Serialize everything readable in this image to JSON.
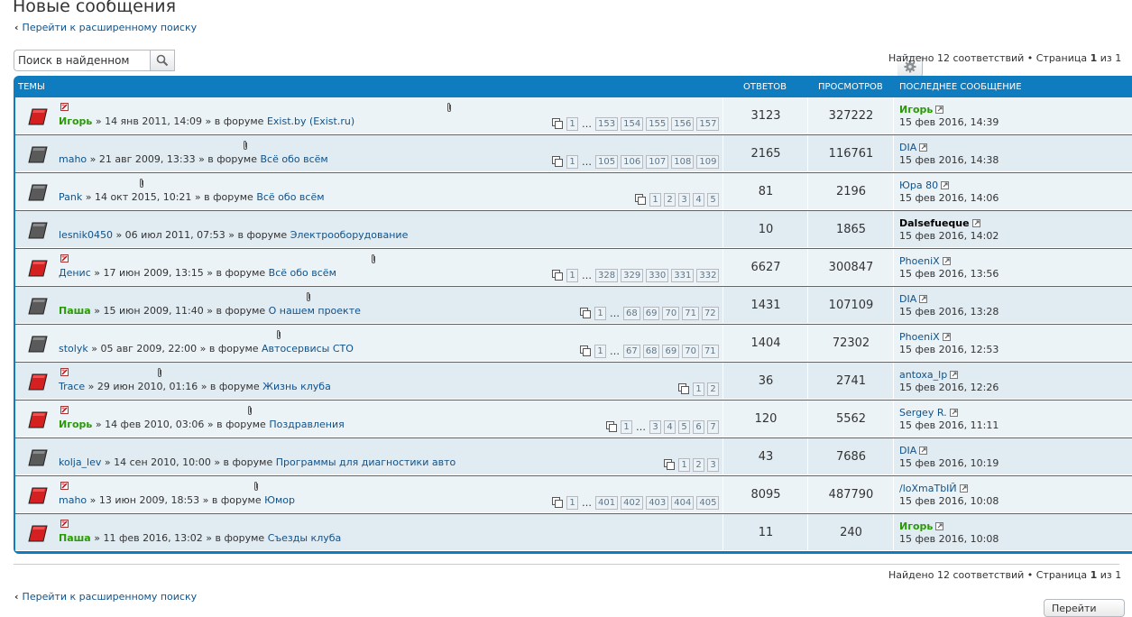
{
  "page_title": "Новые сообщения",
  "advanced_search_link": "Перейти к расширенному поиску",
  "search": {
    "value": "Поиск в найденном",
    "search_icon": "magnifier-icon",
    "options_icon": "gear-icon"
  },
  "pagination": {
    "found_text": "Найдено 12 соответствий • Страница ",
    "current_page": "1",
    "of_text": " из 1"
  },
  "columns": {
    "topics": "Темы",
    "replies": "Ответов",
    "views": "Просмотров",
    "last_post": "Последнее сообщение"
  },
  "topics": [
    {
      "author": "Игорь",
      "author_style": "green",
      "date": "14 янв 2011, 14:09",
      "forum": "Exist.by (Exist.ru)",
      "icon": "red",
      "unread": true,
      "pages": [
        "1",
        "…",
        "153",
        "154",
        "155",
        "156",
        "157"
      ],
      "replies": "3123",
      "views": "327222",
      "last_author": "Игорь",
      "last_author_style": "green",
      "last_time": "15 фев 2016, 14:39"
    },
    {
      "author": "maho",
      "author_style": "normal",
      "date": "21 авг 2009, 13:33",
      "forum": "Всё обо всём",
      "icon": "gray",
      "unread": false,
      "pages": [
        "1",
        "…",
        "105",
        "106",
        "107",
        "108",
        "109"
      ],
      "replies": "2165",
      "views": "116761",
      "last_author": "DIA",
      "last_author_style": "normal",
      "last_time": "15 фев 2016, 14:38"
    },
    {
      "author": "Pank",
      "author_style": "normal",
      "date": "14 окт 2015, 10:21",
      "forum": "Всё обо всём",
      "icon": "gray",
      "unread": false,
      "pages": [
        "1",
        "2",
        "3",
        "4",
        "5"
      ],
      "replies": "81",
      "views": "2196",
      "last_author": "Юра 80",
      "last_author_style": "normal",
      "last_time": "15 фев 2016, 14:06"
    },
    {
      "author": "lesnik0450",
      "author_style": "normal",
      "date": "06 июл 2011, 07:53",
      "forum": "Электрооборудование",
      "icon": "gray",
      "unread": false,
      "pages": [],
      "replies": "10",
      "views": "1865",
      "last_author": "Dalsefueque",
      "last_author_style": "dark",
      "last_time": "15 фев 2016, 14:02"
    },
    {
      "author": "Денис",
      "author_style": "normal",
      "date": "17 июн 2009, 13:15",
      "forum": "Всё обо всём",
      "icon": "red",
      "unread": true,
      "pages": [
        "1",
        "…",
        "328",
        "329",
        "330",
        "331",
        "332"
      ],
      "replies": "6627",
      "views": "300847",
      "last_author": "PhoeniX",
      "last_author_style": "normal",
      "last_time": "15 фев 2016, 13:56"
    },
    {
      "author": "Паша",
      "author_style": "green",
      "date": "15 июн 2009, 11:40",
      "forum": "О нашем проекте",
      "icon": "gray",
      "unread": false,
      "pages": [
        "1",
        "…",
        "68",
        "69",
        "70",
        "71",
        "72"
      ],
      "replies": "1431",
      "views": "107109",
      "last_author": "DIA",
      "last_author_style": "normal",
      "last_time": "15 фев 2016, 13:28"
    },
    {
      "author": "stolyk",
      "author_style": "normal",
      "date": "05 авг 2009, 22:00",
      "forum": "Автосервисы СТО",
      "icon": "gray",
      "unread": false,
      "pages": [
        "1",
        "…",
        "67",
        "68",
        "69",
        "70",
        "71"
      ],
      "replies": "1404",
      "views": "72302",
      "last_author": "PhoeniX",
      "last_author_style": "normal",
      "last_time": "15 фев 2016, 12:53"
    },
    {
      "author": "Trace",
      "author_style": "normal",
      "date": "29 июн 2010, 01:16",
      "forum": "Жизнь клуба",
      "icon": "red",
      "unread": true,
      "pages": [
        "1",
        "2"
      ],
      "replies": "36",
      "views": "2741",
      "last_author": "antoxa_lp",
      "last_author_style": "normal",
      "last_time": "15 фев 2016, 12:26"
    },
    {
      "author": "Игорь",
      "author_style": "green",
      "date": "14 фев 2010, 03:06",
      "forum": "Поздравления",
      "icon": "red",
      "unread": true,
      "pages": [
        "1",
        "…",
        "3",
        "4",
        "5",
        "6",
        "7"
      ],
      "replies": "120",
      "views": "5562",
      "last_author": "Sergey R.",
      "last_author_style": "normal",
      "last_time": "15 фев 2016, 11:11"
    },
    {
      "author": "kolja_lev",
      "author_style": "normal",
      "date": "14 сен 2010, 10:00",
      "forum": "Программы для диагностики авто",
      "icon": "gray",
      "unread": false,
      "pages": [
        "1",
        "2",
        "3"
      ],
      "replies": "43",
      "views": "7686",
      "last_author": "DIA",
      "last_author_style": "normal",
      "last_time": "15 фев 2016, 10:19"
    },
    {
      "author": "maho",
      "author_style": "normal",
      "date": "13 июн 2009, 18:53",
      "forum": "Юмор",
      "icon": "red",
      "unread": true,
      "pages": [
        "1",
        "…",
        "401",
        "402",
        "403",
        "404",
        "405"
      ],
      "replies": "8095",
      "views": "487790",
      "last_author": "/loXmaTbIЙ",
      "last_author_style": "normal",
      "last_time": "15 фев 2016, 10:08"
    },
    {
      "author": "Паша",
      "author_style": "green",
      "date": "11 фев 2016, 13:02",
      "forum": "Съезды клуба",
      "icon": "red",
      "unread": true,
      "pages": [],
      "replies": "11",
      "views": "240",
      "last_author": "Игорь",
      "last_author_style": "green",
      "last_time": "15 фев 2016, 10:08"
    }
  ],
  "meta_sep": " » ",
  "in_forum_text": " » в форуме ",
  "bottom_button": "Перейти"
}
